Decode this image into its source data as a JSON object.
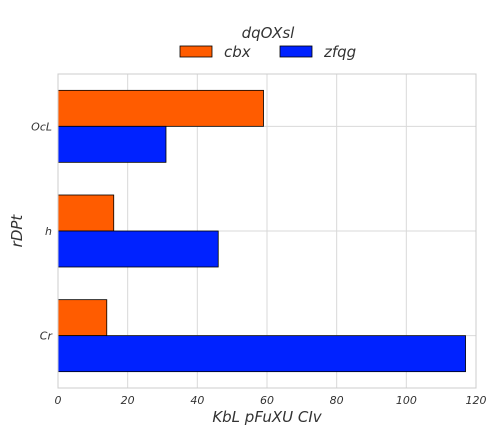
{
  "chart_data": {
    "type": "bar",
    "orientation": "horizontal",
    "categories": [
      "Cr",
      "h",
      "OcL"
    ],
    "series": [
      {
        "name": "cbx",
        "values": [
          14,
          16,
          59
        ],
        "color": "#ff5c00"
      },
      {
        "name": "zfqg",
        "values": [
          117,
          46,
          31
        ],
        "color": "#0022ff"
      }
    ],
    "xlabel": "KbL pFuXU  CIv",
    "ylabel": "rDPt",
    "xlim": [
      0,
      120
    ],
    "xticks": [
      "0",
      "20",
      "40",
      "60",
      "80",
      "100",
      "120"
    ],
    "legend": {
      "title": "dqOXsl",
      "placement": "top-center"
    },
    "grid": true
  }
}
